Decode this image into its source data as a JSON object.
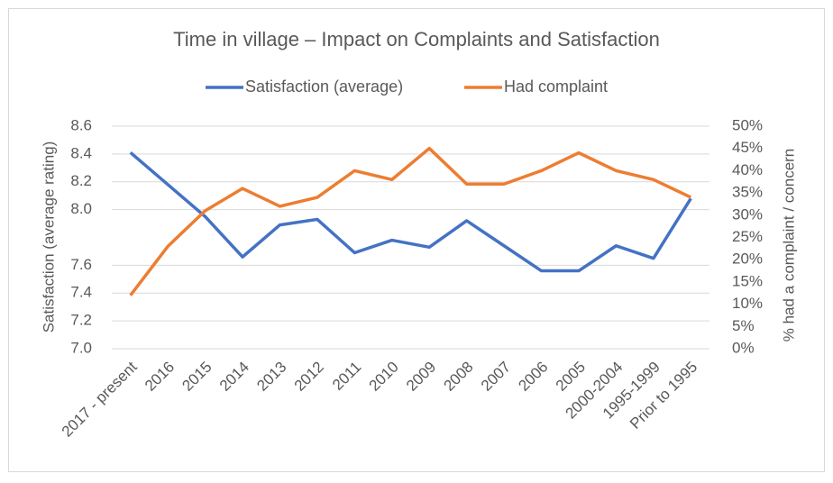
{
  "chart_data": {
    "type": "line",
    "title": "Time in village – Impact on Complaints and Satisfaction",
    "y_label": "Satisfaction (average rating)",
    "y2_label": "% had a complaint / concern",
    "categories": [
      "2017 - present",
      "2016",
      "2015",
      "2014",
      "2013",
      "2012",
      "2011",
      "2010",
      "2009",
      "2008",
      "2007",
      "2006",
      "2005",
      "2000-2004",
      "1995-1999",
      "Prior to 1995"
    ],
    "series": [
      {
        "name": "Satisfaction (average)",
        "color": "#4472c4",
        "values": [
          8.41,
          8.18,
          7.95,
          7.66,
          7.89,
          7.93,
          7.69,
          7.78,
          7.73,
          7.92,
          7.74,
          7.56,
          7.56,
          7.74,
          7.65,
          8.08
        ]
      },
      {
        "name": "Had complaint",
        "color": "#ed7d31",
        "axis": "y2",
        "values": [
          12,
          23,
          31,
          36,
          32,
          34,
          40,
          38,
          45,
          37,
          37,
          40,
          44,
          40,
          38,
          34
        ]
      }
    ],
    "ylim": [
      7.0,
      8.6
    ],
    "yticks": [
      {
        "value": 7,
        "label": "7.0"
      },
      7.2,
      7.4,
      7.6,
      {
        "value": 8,
        "label": "8.0"
      },
      8.2,
      8.4,
      8.6
    ],
    "y2lim": [
      0,
      50
    ],
    "y2ticks": [
      {
        "value": 0,
        "label": "0%"
      },
      {
        "value": 5,
        "label": "5%"
      },
      {
        "value": 10,
        "label": "10%"
      },
      {
        "value": 15,
        "label": "15%"
      },
      {
        "value": 20,
        "label": "20%"
      },
      {
        "value": 25,
        "label": "25%"
      },
      {
        "value": 30,
        "label": "30%"
      },
      {
        "value": 35,
        "label": "35%"
      },
      {
        "value": 40,
        "label": "40%"
      },
      {
        "value": 45,
        "label": "45%"
      },
      {
        "value": 50,
        "label": "50%"
      }
    ],
    "grid": true,
    "legend": "top"
  }
}
